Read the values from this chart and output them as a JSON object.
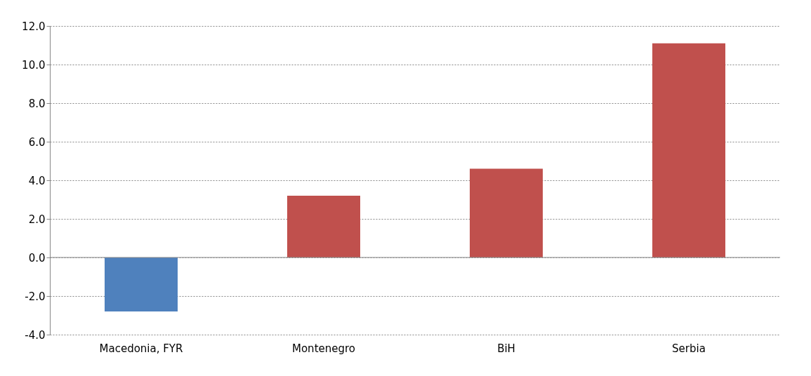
{
  "chart_data": {
    "type": "bar",
    "categories": [
      "Macedonia, FYR",
      "Montenegro",
      "BiH",
      "Serbia"
    ],
    "values": [
      -2.8,
      3.2,
      4.6,
      11.1
    ],
    "colors": [
      "#4f81bd",
      "#c0504d",
      "#c0504d",
      "#c0504d"
    ],
    "ylim": [
      -4,
      12
    ],
    "yticks": [
      {
        "value": -4,
        "label": "-4.0"
      },
      {
        "value": -2,
        "label": "-2.0"
      },
      {
        "value": 0,
        "label": "0.0"
      },
      {
        "value": 2,
        "label": "2.0"
      },
      {
        "value": 4,
        "label": "4.0"
      },
      {
        "value": 6,
        "label": "6.0"
      },
      {
        "value": 8,
        "label": "8.0"
      },
      {
        "value": 10,
        "label": "10.0"
      },
      {
        "value": 12,
        "label": "12.0"
      }
    ],
    "grid": "y"
  }
}
